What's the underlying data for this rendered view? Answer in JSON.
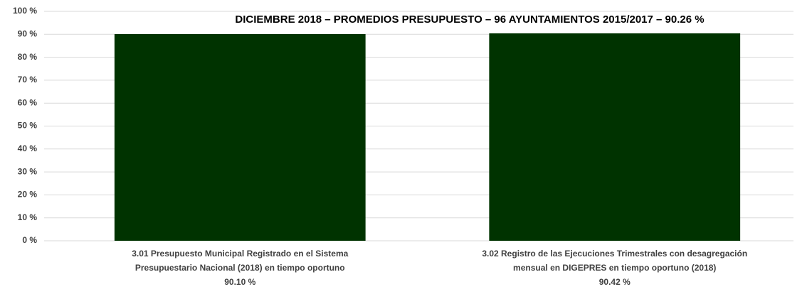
{
  "chart_data": {
    "type": "bar",
    "title": "DICIEMBRE 2018 – PROMEDIOS PRESUPUESTO – 96 AYUNTAMIENTOS 2015/2017 – 90.26 %",
    "categories": [
      [
        "3.01 Presupuesto Municipal Registrado en el Sistema",
        "Presupuestario Nacional (2018) en tiempo oportuno"
      ],
      [
        "3.02 Registro de las Ejecuciones Trimestrales con desagregación",
        "mensual en DIGEPRES en tiempo oportuno (2018)"
      ]
    ],
    "values": [
      90.1,
      90.42
    ],
    "value_labels": [
      "90.10 %",
      "90.42 %"
    ],
    "color": "#003300",
    "ylim": [
      0,
      100
    ],
    "yticks": [
      {
        "value": 0,
        "label": "0 %"
      },
      {
        "value": 10,
        "label": "10 %"
      },
      {
        "value": 20,
        "label": "20 %"
      },
      {
        "value": 30,
        "label": "30 %"
      },
      {
        "value": 40,
        "label": "40 %"
      },
      {
        "value": 50,
        "label": "50 %"
      },
      {
        "value": 60,
        "label": "60 %"
      },
      {
        "value": 70,
        "label": "70 %"
      },
      {
        "value": 80,
        "label": "80 %"
      },
      {
        "value": 90,
        "label": "90 %"
      },
      {
        "value": 100,
        "label": "100 %"
      }
    ],
    "grid": true
  }
}
